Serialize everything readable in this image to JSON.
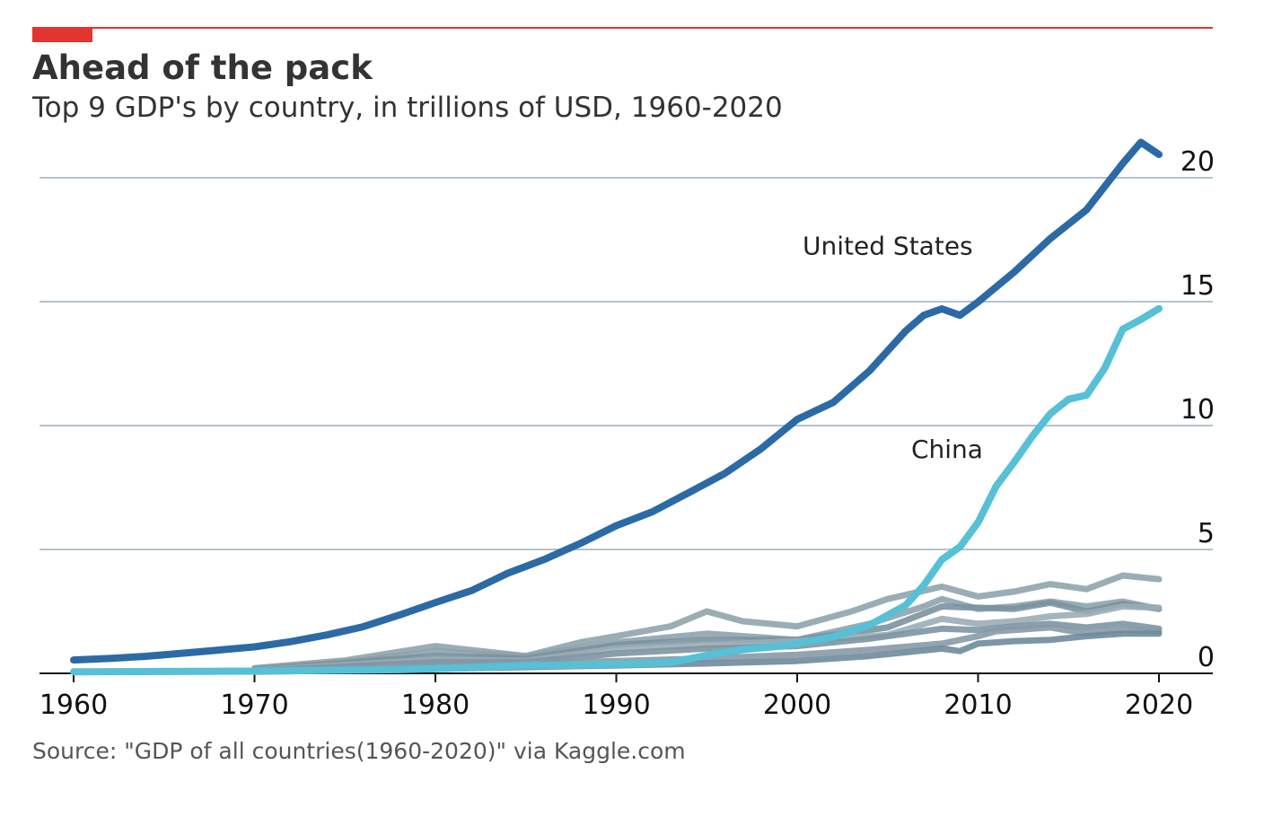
{
  "title": "Ahead of the pack",
  "subtitle": "Top 9 GDP's by country, in trillions of USD, 1960-2020",
  "source": "Source: \"GDP of all countries(1960-2020)\" via Kaggle.com",
  "colors": {
    "accent": "#e3342f",
    "us": "#2c6aa6",
    "china": "#56c0d6",
    "others": [
      "#8fa4ad",
      "#8ea3ad",
      "#7a92a0",
      "#9aadb6",
      "#7d95a3",
      "#8799a6",
      "#6f8b9c"
    ],
    "grid": "#b4c2ca"
  },
  "chart_data": {
    "type": "line",
    "xlim": [
      1960,
      2020
    ],
    "ylim": [
      0,
      21.4
    ],
    "x_ticks": [
      1960,
      1970,
      1980,
      1990,
      2000,
      2010,
      2020
    ],
    "y_ticks": [
      0,
      5,
      10,
      15,
      20
    ],
    "grid": "horizontal",
    "annotations": [
      {
        "text": "United States",
        "x": 2000.3,
        "y": 16.9
      },
      {
        "text": "China",
        "x": 2006.3,
        "y": 8.7
      }
    ],
    "series": [
      {
        "name": "United States",
        "x": [
          1960,
          1962,
          1964,
          1966,
          1968,
          1970,
          1972,
          1974,
          1976,
          1978,
          1980,
          1982,
          1984,
          1986,
          1988,
          1990,
          1992,
          1994,
          1996,
          1998,
          2000,
          2002,
          2004,
          2006,
          2007,
          2008,
          2009,
          2010,
          2012,
          2014,
          2016,
          2018,
          2019,
          2020
        ],
        "y": [
          0.54,
          0.6,
          0.69,
          0.81,
          0.94,
          1.07,
          1.28,
          1.55,
          1.88,
          2.35,
          2.86,
          3.34,
          4.04,
          4.59,
          5.24,
          5.96,
          6.52,
          7.29,
          8.07,
          9.06,
          10.25,
          10.94,
          12.21,
          13.82,
          14.45,
          14.71,
          14.45,
          14.99,
          16.2,
          17.55,
          18.71,
          20.58,
          21.43,
          20.94
        ]
      },
      {
        "name": "China",
        "x": [
          1960,
          1970,
          1978,
          1980,
          1985,
          1990,
          1993,
          1995,
          1997,
          1999,
          2000,
          2002,
          2004,
          2006,
          2007,
          2008,
          2009,
          2010,
          2011,
          2012,
          2013,
          2014,
          2015,
          2016,
          2017,
          2018,
          2019,
          2020
        ],
        "y": [
          0.06,
          0.09,
          0.15,
          0.19,
          0.31,
          0.36,
          0.44,
          0.73,
          0.96,
          1.09,
          1.21,
          1.47,
          1.95,
          2.75,
          3.55,
          4.59,
          5.1,
          6.09,
          7.55,
          8.53,
          9.57,
          10.48,
          11.06,
          11.23,
          12.31,
          13.89,
          14.28,
          14.72
        ]
      },
      {
        "x": [
          1970,
          1975,
          1980,
          1985,
          1988,
          1990,
          1993,
          1995,
          1997,
          2000,
          2003,
          2005,
          2008,
          2010,
          2012,
          2014,
          2016,
          2018,
          2020
        ],
        "y": [
          0.21,
          0.52,
          1.1,
          0.7,
          1.25,
          1.5,
          1.9,
          2.5,
          2.1,
          1.9,
          2.5,
          3.0,
          3.5,
          3.1,
          3.3,
          3.6,
          3.4,
          3.95,
          3.8
        ]
      },
      {
        "x": [
          1970,
          1975,
          1980,
          1985,
          1990,
          1995,
          2000,
          2004,
          2007,
          2008,
          2010,
          2012,
          2014,
          2016,
          2018,
          2020
        ],
        "y": [
          0.2,
          0.45,
          0.9,
          0.7,
          1.25,
          1.6,
          1.35,
          2.0,
          2.7,
          3.0,
          2.6,
          2.7,
          2.9,
          2.7,
          2.9,
          2.6
        ]
      },
      {
        "x": [
          1970,
          1980,
          1985,
          1990,
          1995,
          2000,
          2005,
          2008,
          2010,
          2012,
          2014,
          2016,
          2018,
          2020
        ],
        "y": [
          0.15,
          0.7,
          0.6,
          1.15,
          1.35,
          1.35,
          1.85,
          2.7,
          2.65,
          2.6,
          2.85,
          2.5,
          2.8,
          2.6
        ]
      },
      {
        "x": [
          1970,
          1980,
          1985,
          1990,
          1995,
          2000,
          2005,
          2008,
          2010,
          2012,
          2014,
          2016,
          2018,
          2020
        ],
        "y": [
          0.12,
          0.55,
          0.5,
          1.0,
          1.15,
          1.3,
          1.55,
          2.2,
          2.0,
          2.1,
          2.3,
          2.4,
          2.7,
          2.65
        ]
      },
      {
        "x": [
          1970,
          1980,
          1985,
          1990,
          1995,
          2000,
          2004,
          2008,
          2010,
          2012,
          2014,
          2016,
          2018,
          2020
        ],
        "y": [
          0.1,
          0.45,
          0.45,
          0.8,
          1.0,
          1.1,
          1.4,
          1.8,
          1.75,
          1.9,
          2.0,
          1.85,
          2.0,
          1.8
        ]
      },
      {
        "x": [
          1970,
          1980,
          1990,
          1995,
          2000,
          2004,
          2008,
          2010,
          2011,
          2013,
          2014,
          2016,
          2018,
          2020
        ],
        "y": [
          0.08,
          0.3,
          0.5,
          0.6,
          0.75,
          0.95,
          1.2,
          1.5,
          1.7,
          1.8,
          1.85,
          1.6,
          1.75,
          1.7
        ]
      },
      {
        "x": [
          1970,
          1980,
          1990,
          1995,
          2000,
          2004,
          2008,
          2009,
          2010,
          2012,
          2014,
          2016,
          2018,
          2020
        ],
        "y": [
          0.06,
          0.18,
          0.32,
          0.4,
          0.5,
          0.7,
          1.0,
          0.9,
          1.2,
          1.3,
          1.35,
          1.5,
          1.6,
          1.6
        ]
      }
    ]
  }
}
